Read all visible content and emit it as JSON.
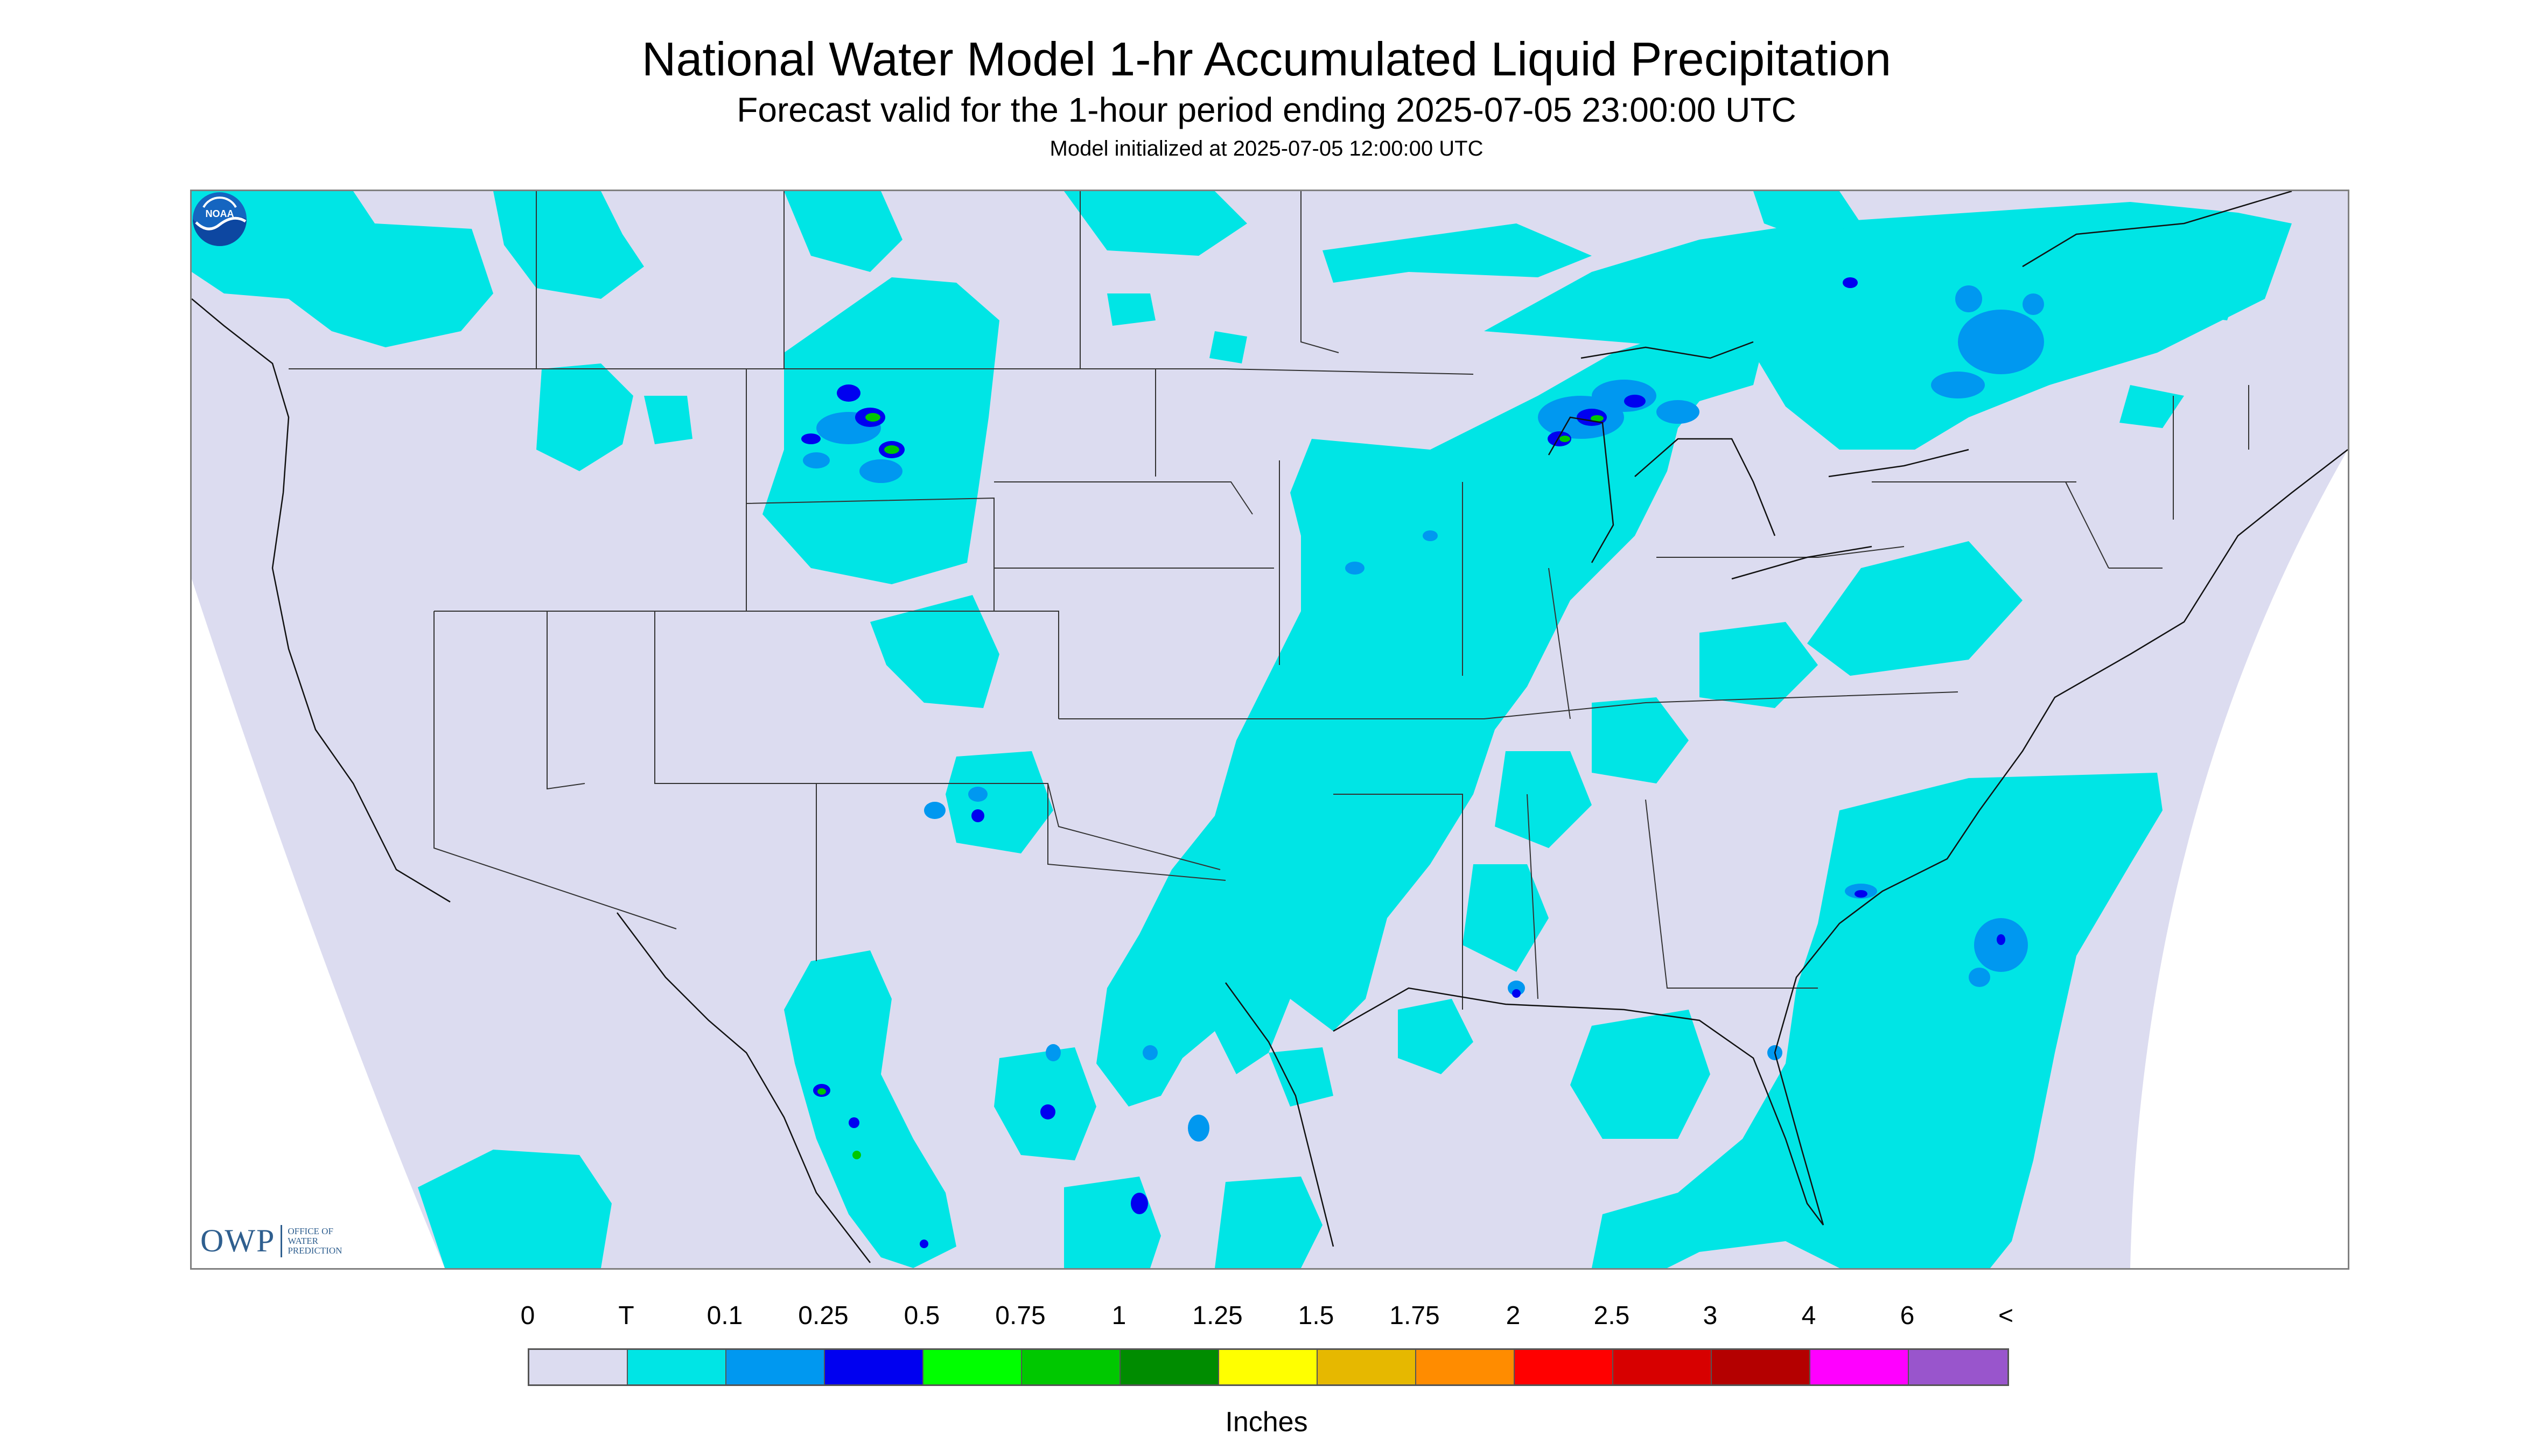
{
  "header": {
    "title": "National Water Model 1-hr Accumulated Liquid Precipitation",
    "subtitle": "Forecast valid for the 1-hour period ending 2025-07-05 23:00:00 UTC",
    "init": "Model initialized at 2025-07-05 12:00:00 UTC"
  },
  "logos": {
    "owp_mark": "OWP",
    "owp_text": [
      "Office of",
      "Water",
      "Prediction"
    ],
    "noaa_text": "NOAA"
  },
  "legend": {
    "labels": [
      "0",
      "T",
      "0.1",
      "0.25",
      "0.5",
      "0.75",
      "1",
      "1.25",
      "1.5",
      "1.75",
      "2",
      "2.5",
      "3",
      "4",
      "6",
      "<"
    ],
    "colors": [
      "#dcdcf0",
      "#00e5e5",
      "#0098f0",
      "#0000f0",
      "#00ff00",
      "#00c800",
      "#008c00",
      "#ffff00",
      "#e6b800",
      "#ff8c00",
      "#ff0000",
      "#d70000",
      "#b40000",
      "#ff00ff",
      "#9955cc"
    ],
    "units": "Inches"
  },
  "map": {
    "background_color": "#dcdcf0",
    "light_precip_color": "#00e5e5",
    "moderate_precip_color": "#0098f0",
    "heavy_precip_color": "#0000f0",
    "very_heavy_precip_color": "#00c800"
  }
}
